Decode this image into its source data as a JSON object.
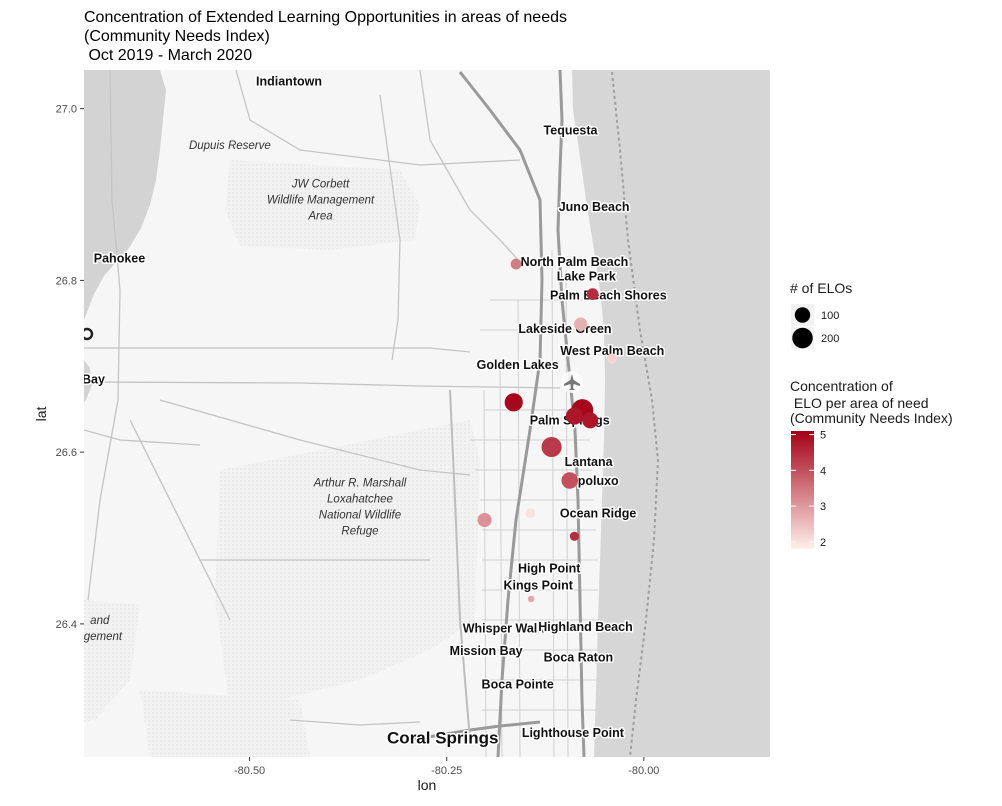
{
  "chart_data": {
    "type": "scatter",
    "title": [
      "Concentration of Extended Learning Opportunities in areas of needs",
      "(Community Needs Index)",
      " Oct 2019 - March 2020"
    ],
    "xlabel": "lon",
    "ylabel": "lat",
    "xlim": [
      -80.71,
      -79.84
    ],
    "ylim": [
      26.245,
      27.045
    ],
    "x_ticks": [
      {
        "value": -80.5,
        "label": "-80.50"
      },
      {
        "value": -80.25,
        "label": "-80.25"
      },
      {
        "value": -80.0,
        "label": "-80.00"
      }
    ],
    "y_ticks": [
      {
        "value": 26.4,
        "label": "26.4"
      },
      {
        "value": 26.6,
        "label": "26.6"
      },
      {
        "value": 26.8,
        "label": "26.8"
      },
      {
        "value": 27.0,
        "label": "27.0"
      }
    ],
    "points": [
      {
        "lon": -80.162,
        "lat": 26.819,
        "count": 40,
        "cni": 3.4
      },
      {
        "lon": -80.065,
        "lat": 26.784,
        "count": 50,
        "cni": 4.5
      },
      {
        "lon": -80.08,
        "lat": 26.749,
        "count": 70,
        "cni": 2.7
      },
      {
        "lon": -80.04,
        "lat": 26.709,
        "count": 35,
        "cni": 2.2
      },
      {
        "lon": -80.165,
        "lat": 26.658,
        "count": 150,
        "cni": 5.0
      },
      {
        "lon": -80.078,
        "lat": 26.649,
        "count": 230,
        "cni": 5.0
      },
      {
        "lon": -80.088,
        "lat": 26.642,
        "count": 130,
        "cni": 4.8
      },
      {
        "lon": -80.068,
        "lat": 26.637,
        "count": 110,
        "cni": 4.8
      },
      {
        "lon": -80.117,
        "lat": 26.606,
        "count": 190,
        "cni": 4.3
      },
      {
        "lon": -80.094,
        "lat": 26.567,
        "count": 120,
        "cni": 4.0
      },
      {
        "lon": -80.202,
        "lat": 26.521,
        "count": 80,
        "cni": 3.1
      },
      {
        "lon": -80.144,
        "lat": 26.529,
        "count": 30,
        "cni": 2.0
      },
      {
        "lon": -80.088,
        "lat": 26.502,
        "count": 25,
        "cni": 4.5
      },
      {
        "lon": -80.143,
        "lat": 26.429,
        "count": 8,
        "cni": 2.8
      }
    ],
    "size_legend": {
      "title": "# of ELOs",
      "entries": [
        {
          "value": 100,
          "label": "100"
        },
        {
          "value": 200,
          "label": "200"
        }
      ]
    },
    "color_legend": {
      "title": [
        "Concentration of",
        " ELO per area of need",
        "(Community Needs Index)"
      ],
      "range": [
        1.8,
        5.1
      ],
      "ticks": [
        {
          "value": 5,
          "label": "5"
        },
        {
          "value": 4,
          "label": "4"
        },
        {
          "value": 3,
          "label": "3"
        },
        {
          "value": 2,
          "label": "2"
        }
      ],
      "colors": [
        "#fff0ea",
        "#a30017"
      ]
    },
    "basemap": {
      "places": [
        {
          "name": "Indiantown",
          "lon": -80.45,
          "lat": 27.027
        },
        {
          "name": "Tequesta",
          "lon": -80.093,
          "lat": 26.97
        },
        {
          "name": "Juno Beach",
          "lon": -80.063,
          "lat": 26.881
        },
        {
          "name": "Pahokee",
          "lon": -80.665,
          "lat": 26.821
        },
        {
          "name": "North Palm Beach",
          "lon": -80.088,
          "lat": 26.817
        },
        {
          "name": "Lake Park",
          "lon": -80.073,
          "lat": 26.8
        },
        {
          "name": "Palm Beach Shores",
          "lon": -80.045,
          "lat": 26.778
        },
        {
          "name": "Lakeside Green",
          "lon": -80.1,
          "lat": 26.739
        },
        {
          "name": "West Palm Beach",
          "lon": -80.04,
          "lat": 26.713
        },
        {
          "name": "Golden Lakes",
          "lon": -80.16,
          "lat": 26.697
        },
        {
          "name": "Palm Springs",
          "lon": -80.094,
          "lat": 26.632
        },
        {
          "name": "Lantana",
          "lon": -80.07,
          "lat": 26.584
        },
        {
          "name": "Hypoluxo",
          "lon": -80.068,
          "lat": 26.562
        },
        {
          "name": "Ocean Ridge",
          "lon": -80.058,
          "lat": 26.524
        },
        {
          "name": "High Point",
          "lon": -80.12,
          "lat": 26.46
        },
        {
          "name": "Kings Point",
          "lon": -80.134,
          "lat": 26.44
        },
        {
          "name": "Whisper Walk",
          "lon": -80.178,
          "lat": 26.39
        },
        {
          "name": "Highland Beach",
          "lon": -80.074,
          "lat": 26.392
        },
        {
          "name": "Mission Bay",
          "lon": -80.2,
          "lat": 26.364
        },
        {
          "name": "Boca Raton",
          "lon": -80.083,
          "lat": 26.356
        },
        {
          "name": "Boca Pointe",
          "lon": -80.16,
          "lat": 26.325
        },
        {
          "name": "Coral Springs",
          "lon": -80.255,
          "lat": 26.261,
          "big": true
        },
        {
          "name": "Lighthouse Point",
          "lon": -80.09,
          "lat": 26.268
        },
        {
          "name": "n Bay",
          "lon": -80.705,
          "lat": 26.68
        }
      ],
      "parks": [
        {
          "lines": [
            "Dupuis Reserve"
          ],
          "lon": -80.525,
          "lat": 26.953
        },
        {
          "lines": [
            "JW Corbett",
            "Wildlife Management",
            "Area"
          ],
          "lon": -80.41,
          "lat": 26.908
        },
        {
          "lines": [
            "Arthur R. Marshall",
            "Loxahatchee",
            "National Wildlife",
            "Refuge"
          ],
          "lon": -80.36,
          "lat": 26.56
        },
        {
          "lines": [
            "and",
            "agement"
          ],
          "lon": -80.69,
          "lat": 26.4
        }
      ]
    }
  }
}
